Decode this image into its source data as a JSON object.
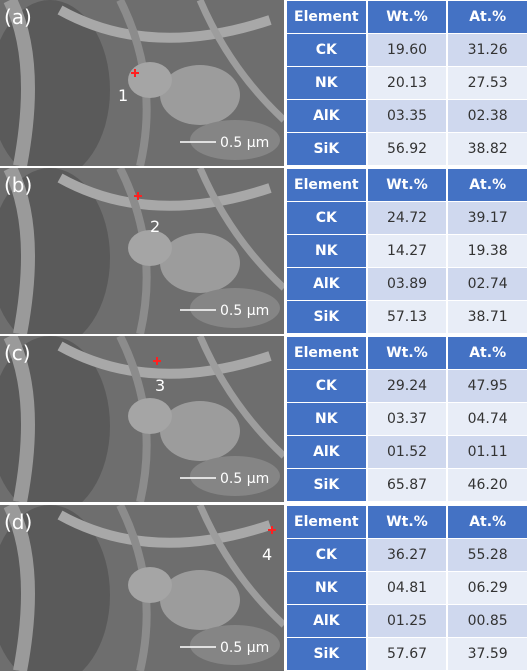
{
  "panels": [
    {
      "label": "(a)",
      "point": "1",
      "scale_bar": "0.5 μm",
      "table": {
        "header": [
          "Element",
          "Wt.%",
          "At.%"
        ],
        "rows": [
          [
            "CK",
            "19.60",
            "31.26"
          ],
          [
            "NK",
            "20.13",
            "27.53"
          ],
          [
            "AlK",
            "03.35",
            "02.38"
          ],
          [
            "SiK",
            "56.92",
            "38.82"
          ]
        ]
      }
    },
    {
      "label": "(b)",
      "point": "2",
      "scale_bar": "0.5 μm",
      "table": {
        "header": [
          "Element",
          "Wt.%",
          "At.%"
        ],
        "rows": [
          [
            "CK",
            "24.72",
            "39.17"
          ],
          [
            "NK",
            "14.27",
            "19.38"
          ],
          [
            "AlK",
            "03.89",
            "02.74"
          ],
          [
            "SiK",
            "57.13",
            "38.71"
          ]
        ]
      }
    },
    {
      "label": "(c)",
      "point": "3",
      "scale_bar": "0.5 μm",
      "table": {
        "header": [
          "Element",
          "Wt.%",
          "At.%"
        ],
        "rows": [
          [
            "CK",
            "29.24",
            "47.95"
          ],
          [
            "NK",
            "03.37",
            "04.74"
          ],
          [
            "AlK",
            "01.52",
            "01.11"
          ],
          [
            "SiK",
            "65.87",
            "46.20"
          ]
        ]
      }
    },
    {
      "label": "(d)",
      "point": "4",
      "scale_bar": "0.5 μm",
      "table": {
        "header": [
          "Element",
          "Wt.%",
          "At.%"
        ],
        "rows": [
          [
            "CK",
            "36.27",
            "55.28"
          ],
          [
            "NK",
            "04.81",
            "06.29"
          ],
          [
            "AlK",
            "01.25",
            "00.85"
          ],
          [
            "SiK",
            "57.67",
            "37.59"
          ]
        ]
      }
    }
  ]
}
